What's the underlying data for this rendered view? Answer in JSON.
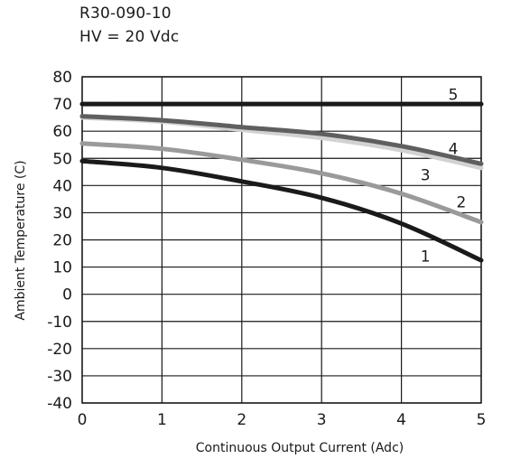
{
  "chart_data": {
    "type": "line",
    "title": "R30-090-10",
    "subtitle": "HV = 20 Vdc",
    "xlabel": "Continuous Output Current (Adc)",
    "ylabel": "Ambient Temperature (C)",
    "xlim": [
      0,
      5
    ],
    "ylim": [
      -40,
      80
    ],
    "x_ticks": [
      0,
      1,
      2,
      3,
      4,
      5
    ],
    "y_ticks": [
      80,
      70,
      60,
      50,
      40,
      30,
      20,
      10,
      0,
      -10,
      -20,
      -30,
      -40
    ],
    "x_tick_labels": [
      "0",
      "1",
      "2",
      "3",
      "4",
      "5"
    ],
    "y_tick_labels": [
      "80",
      "70",
      "60",
      "50",
      "40",
      "30",
      "20",
      "10",
      "0",
      "-10",
      "-20",
      "-30",
      "-40"
    ],
    "grid": true,
    "legend": "none (series numbered on the plot)",
    "series": [
      {
        "name": "1",
        "color": "#1a1a1a",
        "x": [
          0,
          1,
          2,
          3,
          4,
          5
        ],
        "y": [
          49,
          46.5,
          41.5,
          35.5,
          26,
          12.5
        ],
        "label_at": [
          4.3,
          14
        ]
      },
      {
        "name": "2",
        "color": "#9a9a9a",
        "x": [
          0,
          1,
          2,
          3,
          4,
          5
        ],
        "y": [
          55.5,
          53.5,
          49.5,
          44.5,
          37,
          26.5
        ],
        "label_at": [
          4.75,
          34
        ]
      },
      {
        "name": "3",
        "color": "#d2d2d2",
        "x": [
          0,
          1,
          2,
          3,
          4,
          5
        ],
        "y": [
          65,
          63.5,
          60.5,
          57.5,
          53,
          46.5
        ],
        "label_at": [
          4.3,
          44
        ]
      },
      {
        "name": "4",
        "color": "#5f5f5f",
        "x": [
          0,
          1,
          2,
          3,
          4,
          5
        ],
        "y": [
          65.5,
          64,
          61.5,
          59,
          54.5,
          48
        ],
        "label_at": [
          4.65,
          53.5
        ]
      },
      {
        "name": "5",
        "color": "#1a1a1a",
        "x": [
          0,
          1,
          2,
          3,
          4,
          5
        ],
        "y": [
          70,
          70,
          70,
          70,
          70,
          70
        ],
        "label_at": [
          4.65,
          73.5
        ]
      }
    ]
  }
}
